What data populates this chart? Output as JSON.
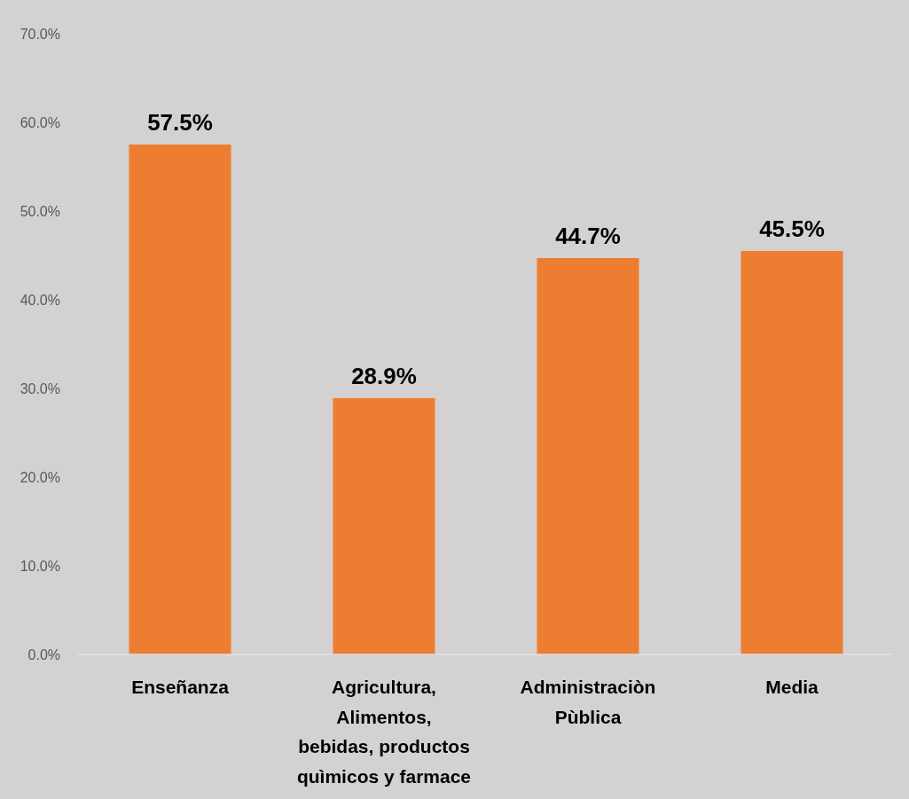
{
  "chart_data": {
    "type": "bar",
    "categories": [
      "Enseñanza",
      "Agricultura, Alimentos, bebidas, productos quìmicos y farmace",
      "Administraciòn Pùblica",
      "Media"
    ],
    "values": [
      57.5,
      28.9,
      44.7,
      45.5
    ],
    "value_labels": [
      "57.5%",
      "28.9%",
      "44.7%",
      "45.5%"
    ],
    "color": "#ed7d31",
    "ylim": [
      0,
      70
    ],
    "yticks": [
      {
        "value": 0,
        "label": "0.0%"
      },
      {
        "value": 10,
        "label": "10.0%"
      },
      {
        "value": 20,
        "label": "20.0%"
      },
      {
        "value": 30,
        "label": "30.0%"
      },
      {
        "value": 40,
        "label": "40.0%"
      },
      {
        "value": 50,
        "label": "50.0%"
      },
      {
        "value": 60,
        "label": "60.0%"
      },
      {
        "value": 70,
        "label": "70.0%"
      }
    ],
    "grid": false
  }
}
